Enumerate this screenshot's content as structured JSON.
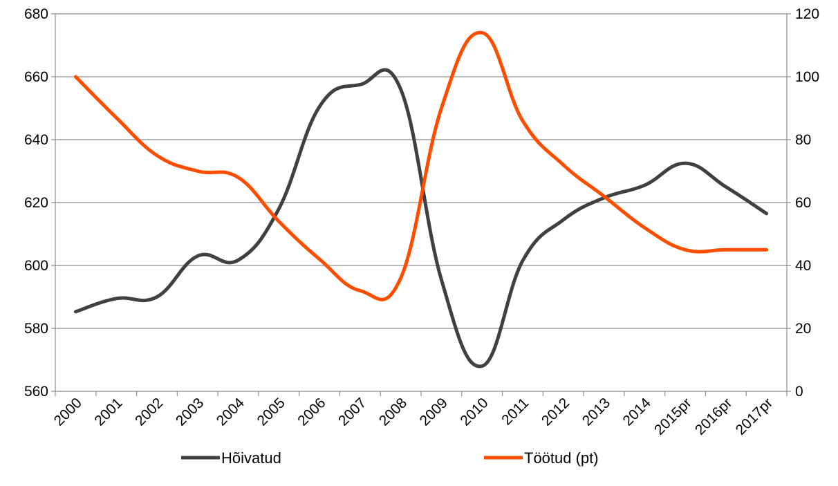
{
  "chart_data": {
    "type": "line",
    "title": "",
    "xlabel": "",
    "ylabel": "",
    "categories": [
      "2000",
      "2001",
      "2002",
      "2003",
      "2004",
      "2005",
      "2006",
      "2007",
      "2008",
      "2009",
      "2010",
      "2011",
      "2012",
      "2013",
      "2014",
      "2015pr",
      "2016pr",
      "2017pr"
    ],
    "y_left": {
      "min": 560,
      "max": 680,
      "ticks": [
        560,
        580,
        600,
        620,
        640,
        660,
        680
      ]
    },
    "y_right": {
      "min": 0,
      "max": 120,
      "ticks": [
        0,
        20,
        40,
        60,
        80,
        100,
        120
      ]
    },
    "grid": true,
    "legend_position": "bottom",
    "series": [
      {
        "name": "Hõivatud",
        "axis": "left",
        "color": "#404040",
        "values": [
          585.3,
          589.5,
          590.0,
          603.0,
          601.7,
          618.0,
          650.5,
          657.5,
          656.0,
          595.5,
          568.0,
          601.5,
          614.5,
          621.5,
          625.5,
          632.5,
          625.0,
          616.5
        ]
      },
      {
        "name": "Töötud (pt)",
        "axis": "right",
        "color": "#ff4d00",
        "values": [
          100,
          87,
          75,
          70,
          68,
          54,
          42,
          32,
          36,
          90,
          114,
          86,
          72,
          62,
          52,
          45,
          45,
          45
        ]
      }
    ]
  }
}
